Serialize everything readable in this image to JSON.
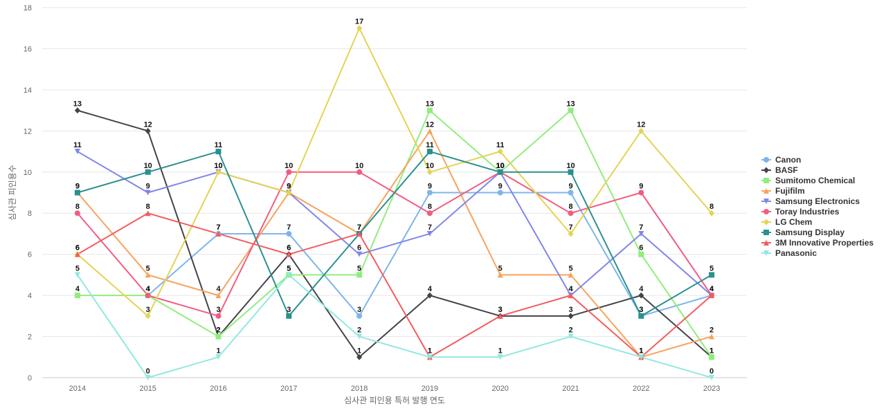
{
  "chart_data": {
    "type": "line",
    "xlabel": "심사관 피인용 특허 발행 연도",
    "ylabel": "심사관 피인용수",
    "x": [
      "2014",
      "2015",
      "2016",
      "2017",
      "2018",
      "2019",
      "2020",
      "2021",
      "2022",
      "2023"
    ],
    "ylim": [
      0,
      18
    ],
    "yticks": [
      0,
      2,
      4,
      6,
      8,
      10,
      12,
      14,
      16,
      18
    ],
    "grid": true,
    "legend_position": "right",
    "data_labels": true,
    "series": [
      {
        "name": "Canon",
        "color": "#7cb5ec",
        "marker": "circle",
        "values": [
          null,
          4,
          7,
          7,
          3,
          9,
          9,
          9,
          3,
          4
        ]
      },
      {
        "name": "BASF",
        "color": "#434348",
        "marker": "diamond",
        "values": [
          13,
          12,
          2,
          6,
          1,
          4,
          3,
          3,
          4,
          1
        ]
      },
      {
        "name": "Sumitomo Chemical",
        "color": "#90ed7d",
        "marker": "square",
        "values": [
          4,
          4,
          2,
          5,
          5,
          13,
          10,
          13,
          6,
          1
        ]
      },
      {
        "name": "Fujifilm",
        "color": "#f7a35c",
        "marker": "triangle",
        "values": [
          9,
          5,
          4,
          9,
          7,
          12,
          5,
          5,
          1,
          2
        ]
      },
      {
        "name": "Samsung Electronics",
        "color": "#8085e9",
        "marker": "triangle-down",
        "values": [
          11,
          9,
          10,
          9,
          6,
          7,
          10,
          4,
          7,
          4
        ]
      },
      {
        "name": "Toray Industries",
        "color": "#f15c80",
        "marker": "circle",
        "values": [
          8,
          4,
          3,
          10,
          10,
          8,
          10,
          8,
          9,
          4
        ]
      },
      {
        "name": "LG Chem",
        "color": "#e4d354",
        "marker": "diamond",
        "values": [
          6,
          3,
          10,
          9,
          17,
          10,
          11,
          7,
          12,
          8
        ]
      },
      {
        "name": "Samsung Display",
        "color": "#2b908f",
        "marker": "square",
        "values": [
          9,
          10,
          11,
          3,
          7,
          11,
          10,
          10,
          3,
          5
        ]
      },
      {
        "name": "3M Innovative Properties",
        "color": "#f45b5b",
        "marker": "triangle",
        "values": [
          6,
          8,
          7,
          6,
          7,
          1,
          3,
          4,
          1,
          4
        ]
      },
      {
        "name": "Panasonic",
        "color": "#91e8e1",
        "marker": "triangle-down",
        "values": [
          5,
          0,
          1,
          5,
          2,
          1,
          1,
          2,
          1,
          0
        ]
      }
    ]
  }
}
